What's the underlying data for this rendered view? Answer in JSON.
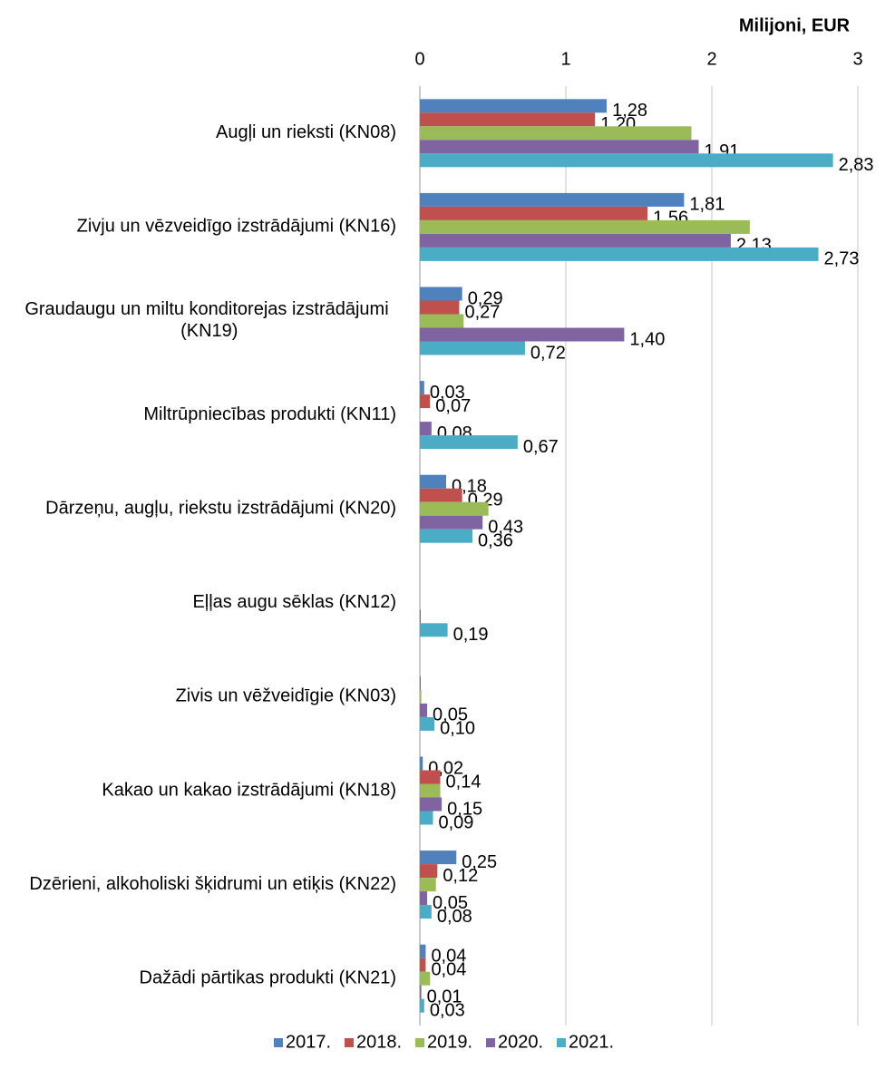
{
  "chart_data": {
    "type": "hbar",
    "x_axis_title": "Milijoni, EUR",
    "categories": [
      "Augļi un rieksti (KN08)",
      "Zivju un vēzveidīgo izstrādājumi (KN16)",
      "Graudaugu un miltu konditorejas izstrādājumi (KN19)",
      "Miltrūpniecības produkti (KN11)",
      "Dārzeņu, augļu, riekstu izstrādājumi (KN20)",
      "Eļļas augu sēklas (KN12)",
      "Zivis un vēžveidīgie (KN03)",
      "Kakao un kakao izstrādājumi (KN18)",
      "Dzērieni, alkoholiski šķidrumi un etiķis (KN22)",
      "Dažādi pārtikas produkti (KN21)"
    ],
    "series": [
      {
        "name": "2017.",
        "color": "#4f81bd",
        "values": [
          1.28,
          1.81,
          0.29,
          0.03,
          0.18,
          null,
          null,
          0.02,
          0.25,
          0.04
        ],
        "value_labels": [
          "1,28",
          "1,81",
          "0,29",
          "0,03",
          "0,18",
          null,
          null,
          "0,02",
          "0,25",
          "0,04"
        ]
      },
      {
        "name": "2018.",
        "color": "#c0504d",
        "values": [
          1.2,
          1.56,
          0.27,
          0.07,
          0.29,
          null,
          0.005,
          0.14,
          0.12,
          0.04
        ],
        "value_labels": [
          "1,20",
          "1,56",
          "0,27",
          "0,07",
          "0,29",
          null,
          null,
          "0,14",
          "0,12",
          "0,04"
        ]
      },
      {
        "name": "2019.",
        "color": "#9bbb59",
        "values": [
          1.86,
          2.26,
          0.3,
          null,
          0.47,
          null,
          0.01,
          0.14,
          0.11,
          0.07
        ],
        "value_labels": [
          null,
          null,
          null,
          null,
          null,
          null,
          null,
          null,
          null,
          null
        ]
      },
      {
        "name": "2020.",
        "color": "#8064a2",
        "values": [
          1.91,
          2.13,
          1.4,
          0.08,
          0.43,
          0.005,
          0.05,
          0.15,
          0.05,
          0.01
        ],
        "value_labels": [
          "1,91",
          "2,13",
          "1,40",
          "0,08",
          "0,43",
          null,
          "0,05",
          "0,15",
          "0,05",
          "0,01"
        ]
      },
      {
        "name": "2021.",
        "color": "#4bacc6",
        "values": [
          2.83,
          2.73,
          0.72,
          0.67,
          0.36,
          0.19,
          0.1,
          0.09,
          0.08,
          0.03
        ],
        "value_labels": [
          "2,83",
          "2,73",
          "0,72",
          "0,67",
          "0,36",
          "0,19",
          "0,10",
          "0,09",
          "0,08",
          "0,03"
        ]
      }
    ],
    "xlim": [
      0,
      3
    ],
    "xticks": [
      0,
      1,
      2,
      3
    ],
    "grid": true,
    "legend": "bottom"
  }
}
